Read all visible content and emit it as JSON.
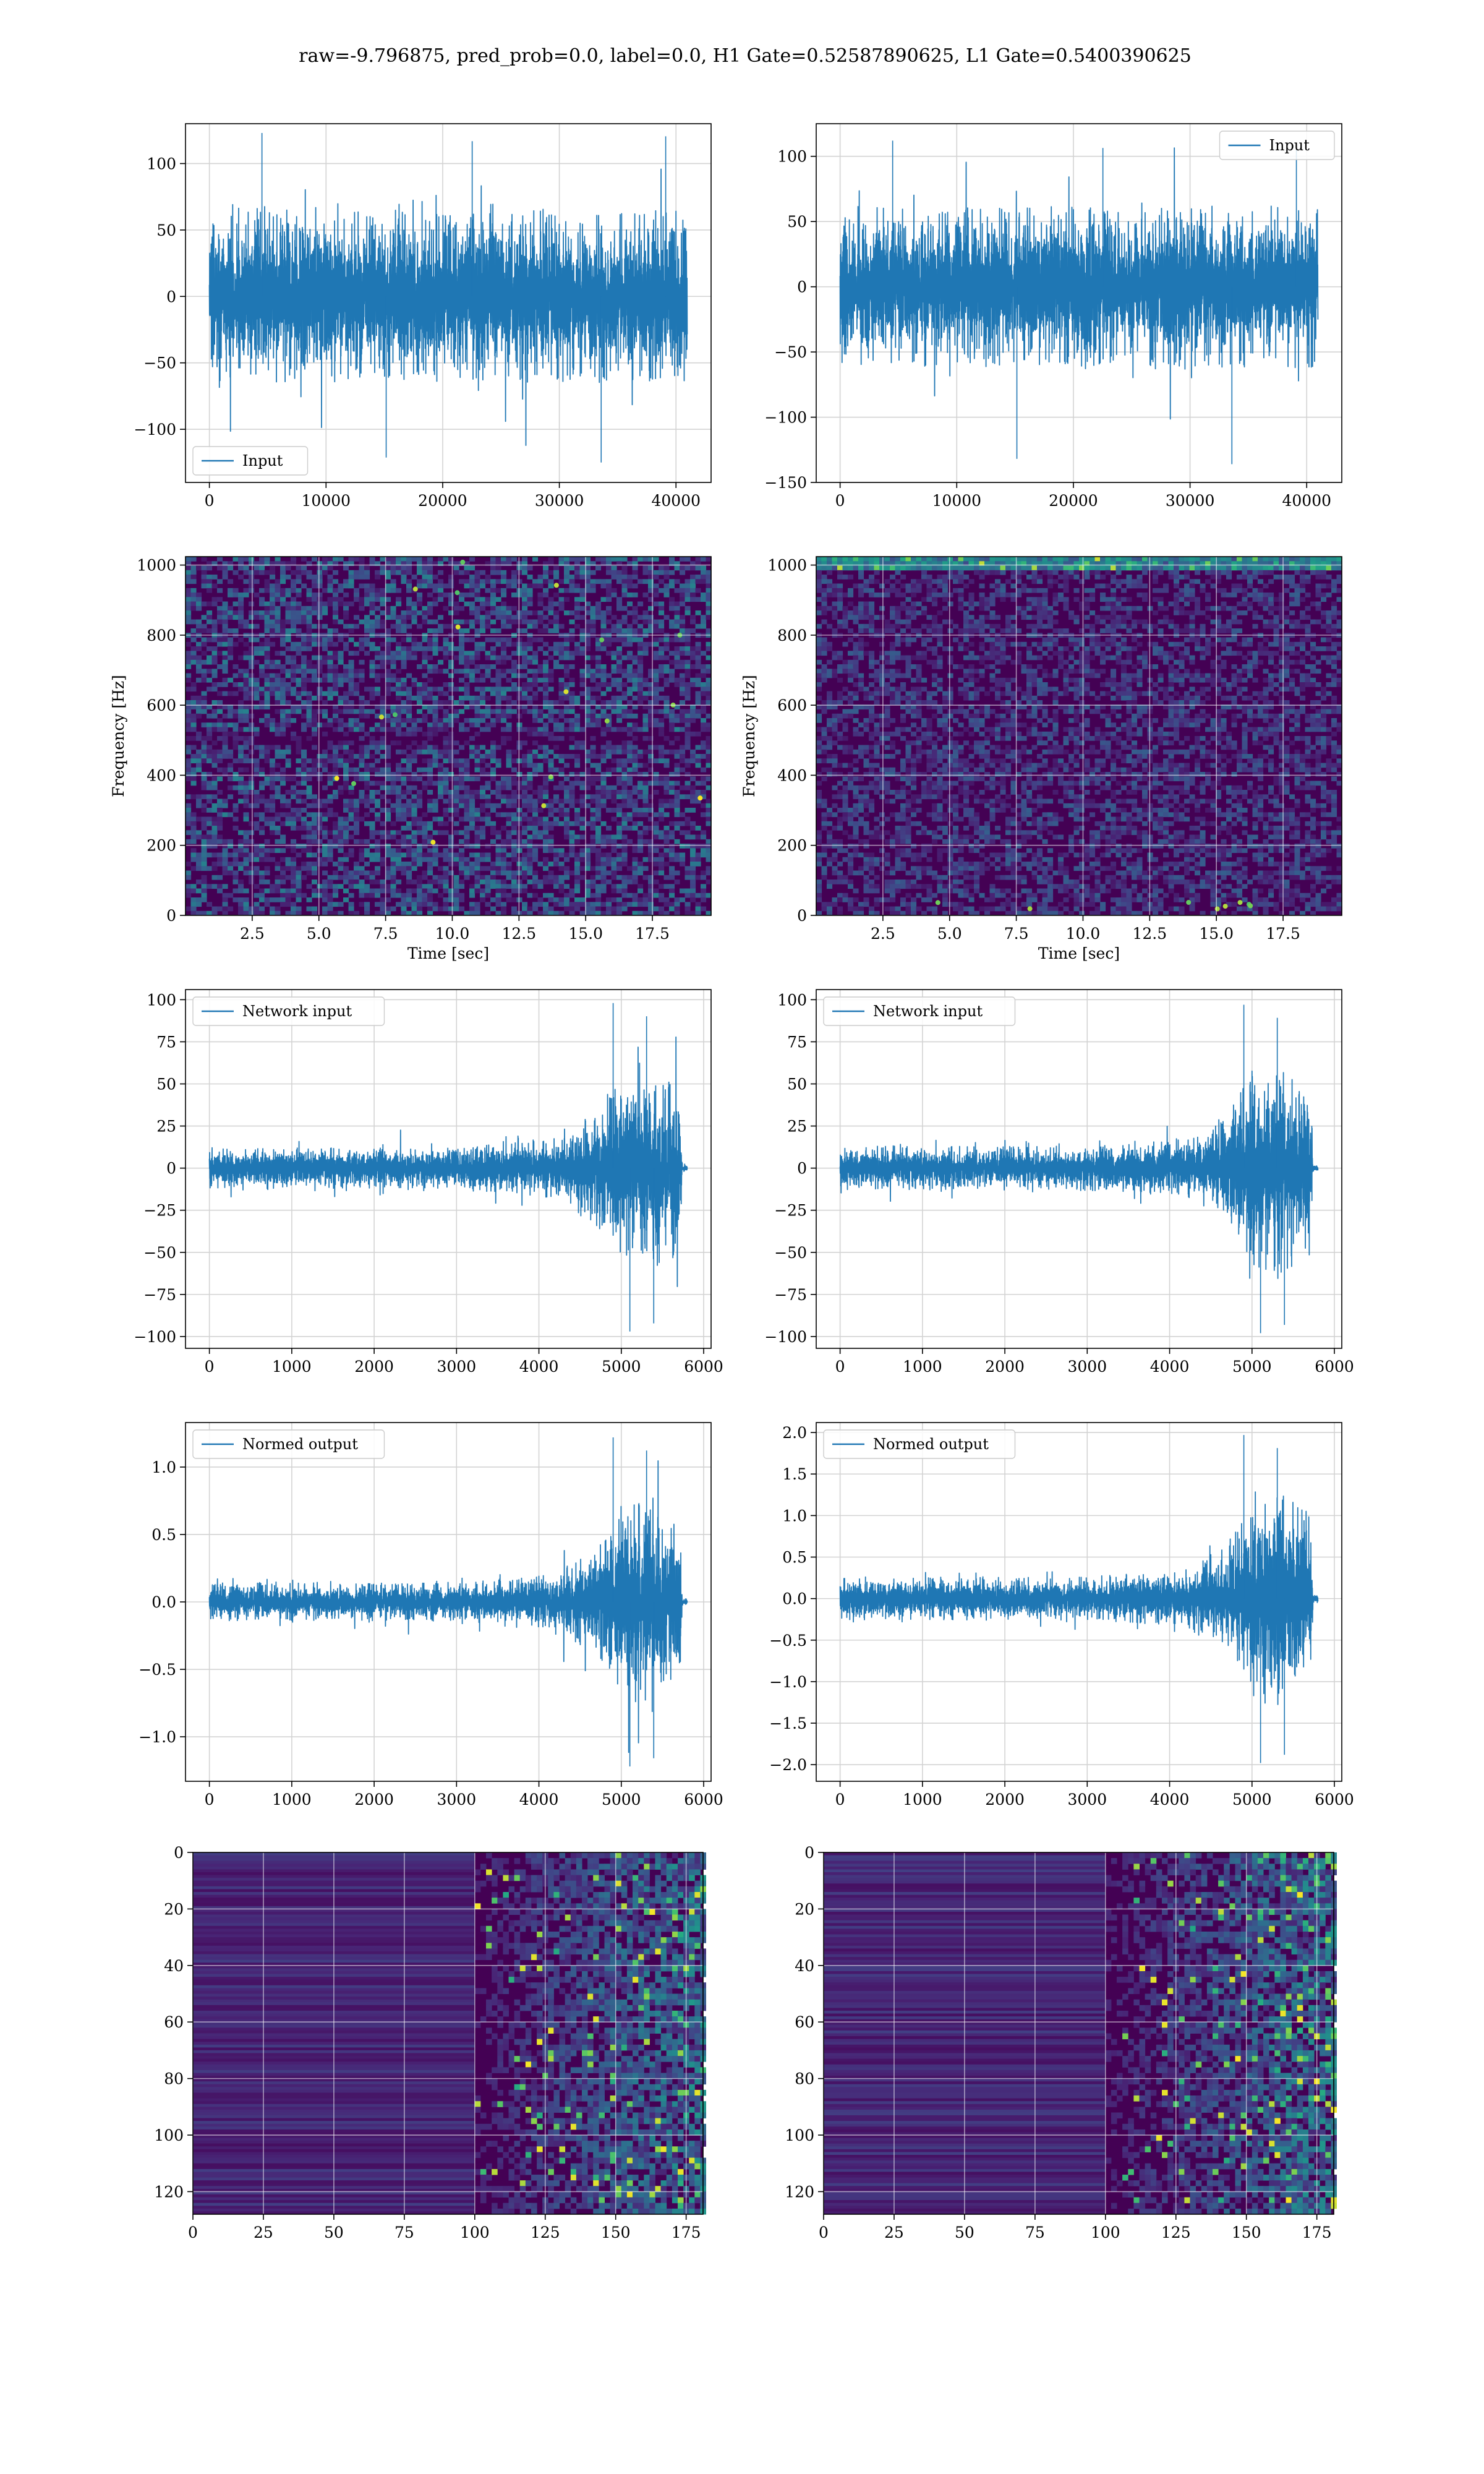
{
  "figure": {
    "title": "raw=-9.796875, pred_prob=0.0, label=0.0, H1 Gate=0.52587890625, L1 Gate=0.5400390625"
  },
  "colors": {
    "line": "#1f77b4",
    "grid": "#d3d3d3",
    "viridis_low": "#440154",
    "viridis_mid": "#21918c",
    "viridis_high": "#fde725"
  },
  "chart_data": [
    {
      "id": "h1-input",
      "type": "line",
      "legend": "Input",
      "legend_loc": "lower-left",
      "xlim": [
        -2048,
        43008
      ],
      "ylim": [
        -140,
        130
      ],
      "xticks": [
        0,
        10000,
        20000,
        30000,
        40000
      ],
      "yticks": [
        -100,
        -50,
        0,
        50,
        100
      ],
      "grid": true,
      "x_range": [
        0,
        40960
      ],
      "noise_amplitude": 65,
      "max_value": 123,
      "min_value": -125,
      "envelope": [
        [
          0,
          1
        ],
        [
          1,
          1
        ]
      ]
    },
    {
      "id": "l1-input",
      "type": "line",
      "legend": "Input",
      "legend_loc": "upper-right",
      "xlim": [
        -2048,
        43008
      ],
      "ylim": [
        -150,
        125
      ],
      "xticks": [
        0,
        10000,
        20000,
        30000,
        40000
      ],
      "yticks": [
        -150,
        -100,
        -50,
        0,
        50,
        100
      ],
      "grid": true,
      "x_range": [
        0,
        40960
      ],
      "noise_amplitude": 62,
      "max_value": 112,
      "min_value": -136,
      "envelope": [
        [
          0,
          1
        ],
        [
          1,
          1
        ]
      ]
    },
    {
      "id": "h1-spectrogram",
      "type": "heatmap",
      "xlabel": "Time [sec]",
      "ylabel": "Frequency [Hz]",
      "xlim": [
        0,
        19.7
      ],
      "ylim": [
        0,
        1024
      ],
      "xticks": [
        2.5,
        5.0,
        7.5,
        10.0,
        12.5,
        15.0,
        17.5
      ],
      "yticks": [
        0,
        200,
        400,
        600,
        800,
        1000
      ],
      "xtick_labels": [
        "2.5",
        "5.0",
        "7.5",
        "10.0",
        "12.5",
        "15.0",
        "17.5"
      ],
      "grid": true,
      "colormap": "viridis",
      "low_band_bright": false
    },
    {
      "id": "l1-spectrogram",
      "type": "heatmap",
      "xlabel": "Time [sec]",
      "ylabel": "Frequency [Hz]",
      "xlim": [
        0,
        19.7
      ],
      "ylim": [
        0,
        1024
      ],
      "xticks": [
        2.5,
        5.0,
        7.5,
        10.0,
        12.5,
        15.0,
        17.5
      ],
      "yticks": [
        0,
        200,
        400,
        600,
        800,
        1000
      ],
      "xtick_labels": [
        "2.5",
        "5.0",
        "7.5",
        "10.0",
        "12.5",
        "15.0",
        "17.5"
      ],
      "grid": true,
      "colormap": "viridis",
      "low_band_bright": true
    },
    {
      "id": "h1-network-input",
      "type": "line",
      "legend": "Network input",
      "legend_loc": "upper-left",
      "xlim": [
        -290,
        6090
      ],
      "ylim": [
        -107,
        106
      ],
      "xticks": [
        0,
        1000,
        2000,
        3000,
        4000,
        5000,
        6000
      ],
      "yticks": [
        -100,
        -75,
        -50,
        -25,
        0,
        25,
        50,
        75,
        100
      ],
      "grid": true,
      "x_range": [
        0,
        5800
      ],
      "noise_amplitude": 12,
      "max_value": 98,
      "min_value": -97,
      "envelope": [
        [
          0,
          1.0
        ],
        [
          0.5,
          1.0
        ],
        [
          0.72,
          1.5
        ],
        [
          0.8,
          2.6
        ],
        [
          0.86,
          4.6
        ],
        [
          0.9,
          5.5
        ],
        [
          0.94,
          4.8
        ],
        [
          0.985,
          4.3
        ],
        [
          0.99,
          0.2
        ],
        [
          1.0,
          0.2
        ]
      ]
    },
    {
      "id": "l1-network-input",
      "type": "line",
      "legend": "Network input",
      "legend_loc": "upper-left",
      "xlim": [
        -290,
        6090
      ],
      "ylim": [
        -107,
        106
      ],
      "xticks": [
        0,
        1000,
        2000,
        3000,
        4000,
        5000,
        6000
      ],
      "yticks": [
        -100,
        -75,
        -50,
        -25,
        0,
        25,
        50,
        75,
        100
      ],
      "grid": true,
      "x_range": [
        0,
        5800
      ],
      "noise_amplitude": 13,
      "max_value": 97,
      "min_value": -98,
      "envelope": [
        [
          0,
          1.0
        ],
        [
          0.5,
          1.0
        ],
        [
          0.72,
          1.3
        ],
        [
          0.8,
          2.4
        ],
        [
          0.86,
          4.4
        ],
        [
          0.9,
          5.2
        ],
        [
          0.94,
          4.6
        ],
        [
          0.985,
          4.0
        ],
        [
          0.99,
          0.2
        ],
        [
          1.0,
          0.2
        ]
      ]
    },
    {
      "id": "h1-normed-output",
      "type": "line",
      "legend": "Normed output",
      "legend_loc": "upper-left",
      "xlim": [
        -290,
        6090
      ],
      "ylim": [
        -1.33,
        1.33
      ],
      "xticks": [
        0,
        1000,
        2000,
        3000,
        4000,
        5000,
        6000
      ],
      "yticks": [
        -1.0,
        -0.5,
        0.0,
        0.5,
        1.0
      ],
      "ytick_labels": [
        "−1.0",
        "−0.5",
        "0.0",
        "0.5",
        "1.0"
      ],
      "grid": true,
      "x_range": [
        0,
        5800
      ],
      "noise_amplitude": 0.14,
      "max_value": 1.22,
      "min_value": -1.22,
      "envelope": [
        [
          0,
          1.0
        ],
        [
          0.5,
          1.0
        ],
        [
          0.72,
          1.5
        ],
        [
          0.8,
          2.6
        ],
        [
          0.86,
          4.6
        ],
        [
          0.9,
          5.5
        ],
        [
          0.94,
          4.8
        ],
        [
          0.985,
          4.3
        ],
        [
          0.99,
          0.2
        ],
        [
          1.0,
          0.2
        ]
      ]
    },
    {
      "id": "l1-normed-output",
      "type": "line",
      "legend": "Normed output",
      "legend_loc": "upper-left",
      "xlim": [
        -290,
        6090
      ],
      "ylim": [
        -2.2,
        2.12
      ],
      "xticks": [
        0,
        1000,
        2000,
        3000,
        4000,
        5000,
        6000
      ],
      "yticks": [
        -2.0,
        -1.5,
        -1.0,
        -0.5,
        0.0,
        0.5,
        1.0,
        1.5,
        2.0
      ],
      "ytick_labels": [
        "−2.0",
        "−1.5",
        "−1.0",
        "−0.5",
        "0.0",
        "0.5",
        "1.0",
        "1.5",
        "2.0"
      ],
      "grid": true,
      "x_range": [
        0,
        5800
      ],
      "noise_amplitude": 0.26,
      "max_value": 1.97,
      "min_value": -1.98,
      "envelope": [
        [
          0,
          1.0
        ],
        [
          0.5,
          1.0
        ],
        [
          0.72,
          1.3
        ],
        [
          0.8,
          2.4
        ],
        [
          0.86,
          4.4
        ],
        [
          0.9,
          5.2
        ],
        [
          0.94,
          4.6
        ],
        [
          0.985,
          4.0
        ],
        [
          0.99,
          0.2
        ],
        [
          1.0,
          0.2
        ]
      ]
    },
    {
      "id": "h1-feature-map",
      "type": "heatmap",
      "xlim": [
        0,
        181
      ],
      "ylim": [
        128,
        0
      ],
      "xticks": [
        0,
        25,
        50,
        75,
        100,
        125,
        150,
        175
      ],
      "yticks": [
        0,
        20,
        40,
        60,
        80,
        100,
        120
      ],
      "grid": true,
      "colormap": "viridis",
      "activity_onset": 100
    },
    {
      "id": "l1-feature-map",
      "type": "heatmap",
      "xlim": [
        0,
        181
      ],
      "ylim": [
        128,
        0
      ],
      "xticks": [
        0,
        25,
        50,
        75,
        100,
        125,
        150,
        175
      ],
      "yticks": [
        0,
        20,
        40,
        60,
        80,
        100,
        120
      ],
      "grid": true,
      "colormap": "viridis",
      "activity_onset": 100
    }
  ]
}
